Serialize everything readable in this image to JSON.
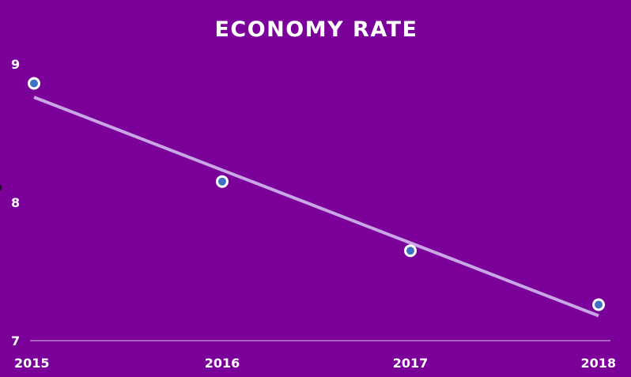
{
  "chart_data": {
    "type": "scatter",
    "title": "ECONOMY RATE",
    "xlabel": "",
    "ylabel": "",
    "categories": [
      "2015",
      "2016",
      "2017",
      "2018"
    ],
    "series": [
      {
        "values": [
          8.86,
          8.15,
          7.65,
          7.26
        ]
      }
    ],
    "trendline": {
      "start": 8.76,
      "end": 7.18
    },
    "ylim": [
      7,
      9
    ],
    "yticks": [
      "9",
      "8",
      "7"
    ],
    "grid": false,
    "legend": "none",
    "colors": {
      "background": "#7b009a",
      "marker_fill": "#3f6fc4",
      "marker_edge": "#ffffff",
      "trendline": "#c9a6e6",
      "axis": "#c79ce0",
      "text": "#ffffff"
    }
  }
}
